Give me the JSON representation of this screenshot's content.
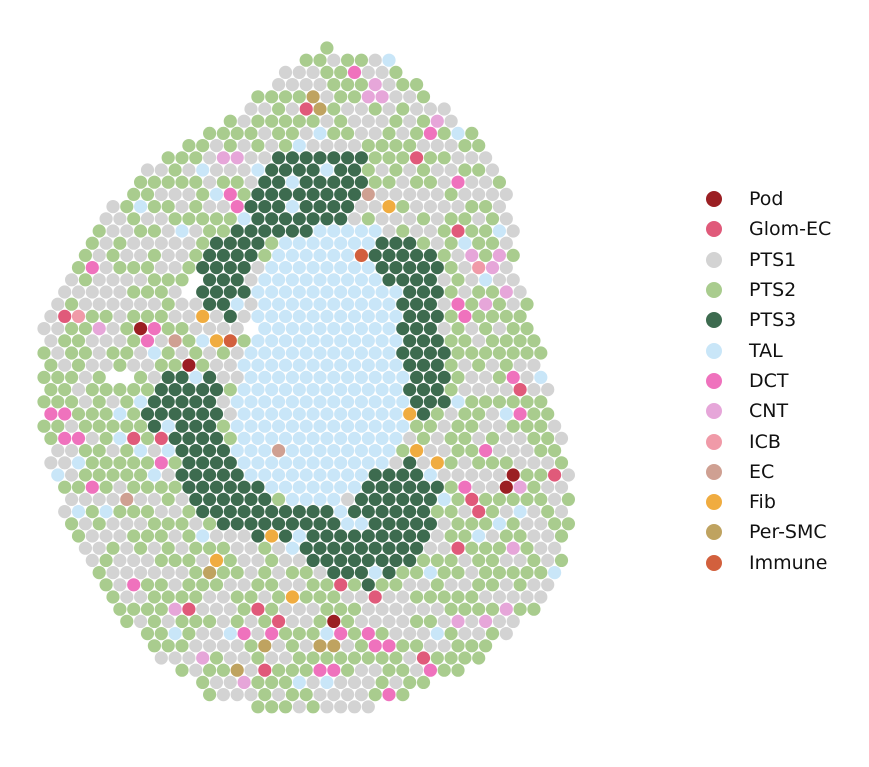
{
  "chart_data": {
    "type": "scatter",
    "title": "",
    "xlabel": "",
    "ylabel": "",
    "axes_visible": false,
    "grid": false,
    "legend_placement": "right",
    "layout": "hexagonal spot grid (spatial transcriptomics tissue section)",
    "categories": [
      {
        "name": "Pod",
        "color": "#9b1f23"
      },
      {
        "name": "Glom-EC",
        "color": "#e05a7a"
      },
      {
        "name": "PTS1",
        "color": "#d3d3d3"
      },
      {
        "name": "PTS2",
        "color": "#a9cc8e"
      },
      {
        "name": "PTS3",
        "color": "#3d6b4f"
      },
      {
        "name": "TAL",
        "color": "#c9e6f8"
      },
      {
        "name": "DCT",
        "color": "#ef72bd"
      },
      {
        "name": "CNT",
        "color": "#e6a6d9"
      },
      {
        "name": "ICB",
        "color": "#f09aa8"
      },
      {
        "name": "EC",
        "color": "#cfa092"
      },
      {
        "name": "Fib",
        "color": "#f0ac40"
      },
      {
        "name": "Per-SMC",
        "color": "#bfa360"
      },
      {
        "name": "Immune",
        "color": "#d2603d"
      }
    ]
  }
}
